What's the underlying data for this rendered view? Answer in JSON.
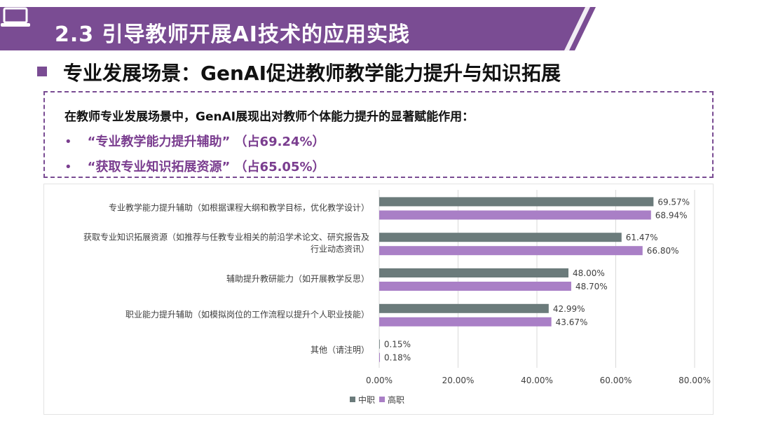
{
  "header": {
    "title": "2.3 引导教师开展AI技术的应用实践",
    "icon": "laptop-icon",
    "accent_color": "#7a4c93"
  },
  "subtitle": "专业发展场景：GenAI促进教师教学能力提升与知识拓展",
  "info": {
    "intro": "在教师专业发展场景中，GenAI展现出对教师个体能力提升的显著赋能作用：",
    "bullets": [
      {
        "marker": "•",
        "text": "“专业教学能力提升辅助” （占69.24%）"
      },
      {
        "marker": "•",
        "text": "“获取专业知识拓展资源” （占65.05%）"
      }
    ]
  },
  "chart_data": {
    "type": "bar",
    "orientation": "horizontal",
    "categories": [
      [
        "专业教学能力提升辅助（如根据课程大纲和教学目标，优化教学设计）"
      ],
      [
        "获取专业知识拓展资源（如推荐与任教专业相关的前沿学术论文、研究报告及",
        "行业动态资讯）"
      ],
      [
        "辅助提升教研能力（如开展教学反思）"
      ],
      [
        "职业能力提升辅助（如模拟岗位的工作流程以提升个人职业技能）"
      ],
      [
        "其他（请注明）"
      ]
    ],
    "series": [
      {
        "name": "中职",
        "color": "#6b7b7b",
        "values": [
          69.57,
          61.47,
          48.0,
          42.99,
          0.15
        ]
      },
      {
        "name": "高职",
        "color": "#a97fc6",
        "values": [
          68.94,
          66.8,
          48.7,
          43.67,
          0.18
        ]
      }
    ],
    "value_labels": [
      [
        "69.57%",
        "61.47%",
        "48.00%",
        "42.99%",
        "0.15%"
      ],
      [
        "68.94%",
        "66.80%",
        "48.70%",
        "43.67%",
        "0.18%"
      ]
    ],
    "xlim": [
      0,
      80
    ],
    "xticks": [
      0,
      20,
      40,
      60,
      80
    ],
    "xtick_labels": [
      "0.00%",
      "20.00%",
      "40.00%",
      "60.00%",
      "80.00%"
    ],
    "grid": true,
    "legend_position": "bottom"
  }
}
